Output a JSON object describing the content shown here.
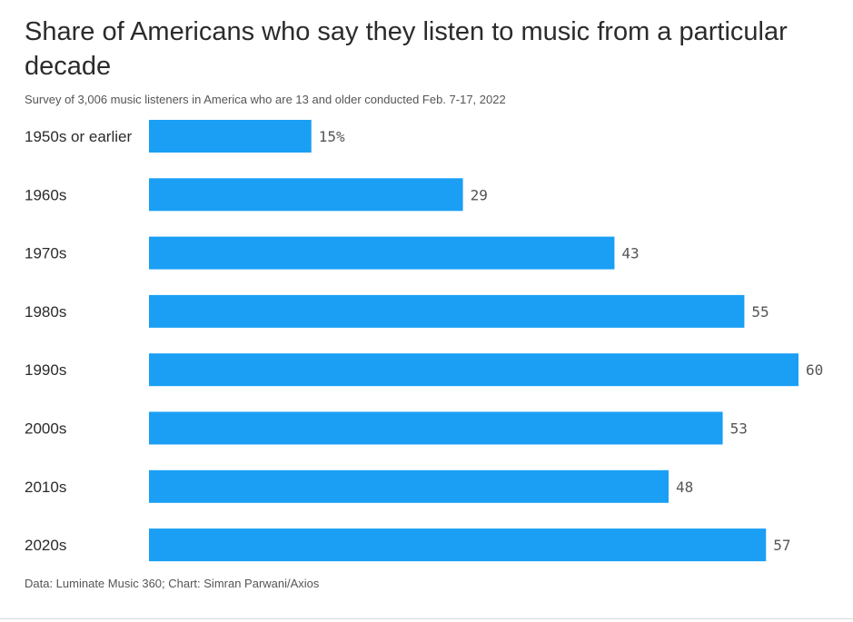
{
  "chart_data": {
    "type": "bar",
    "orientation": "horizontal",
    "title": "Share of Americans who say they listen to music from a particular decade",
    "subtitle": "Survey of 3,006 music listeners in America who are 13 and older conducted Feb. 7-17, 2022",
    "categories": [
      "1950s or earlier",
      "1960s",
      "1970s",
      "1980s",
      "1990s",
      "2000s",
      "2010s",
      "2020s"
    ],
    "values": [
      15,
      29,
      43,
      55,
      60,
      53,
      48,
      57
    ],
    "value_labels": [
      "15%",
      "29",
      "43",
      "55",
      "60",
      "53",
      "48",
      "57"
    ],
    "unit": "%",
    "xlim": [
      0,
      60
    ],
    "grid": false,
    "legend": "none",
    "bar_color": "#1a9ff5",
    "source": "Data: Luminate Music 360; Chart: Simran Parwani/Axios"
  }
}
